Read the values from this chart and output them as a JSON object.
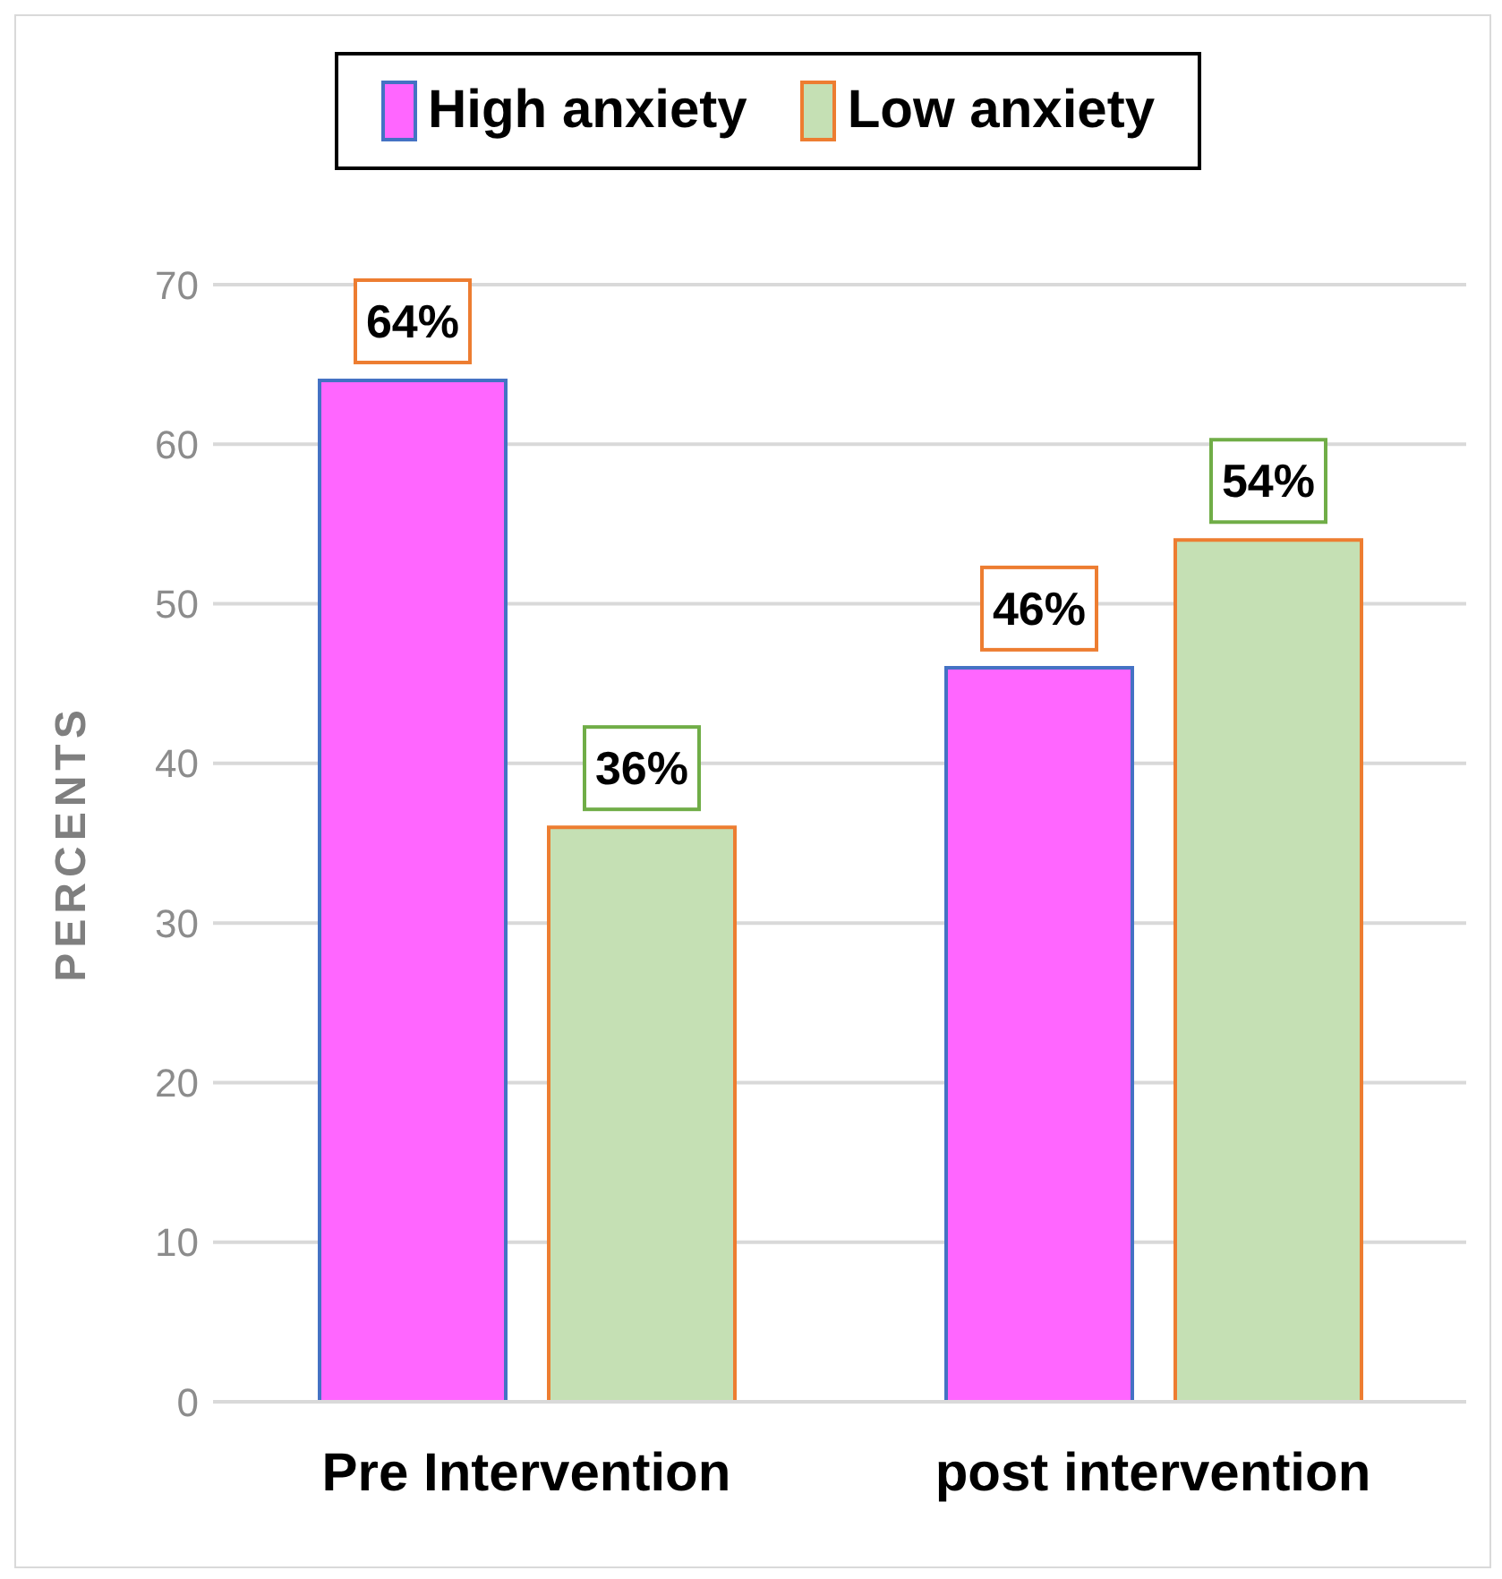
{
  "chart_data": {
    "type": "bar",
    "ylabel": "PERCENTS",
    "categories": [
      "Pre Intervention",
      "post intervention"
    ],
    "series": [
      {
        "name": "High anxiety",
        "color": "#ff66ff",
        "values": [
          64,
          46
        ],
        "value_labels": [
          "64%",
          "46%"
        ]
      },
      {
        "name": "Low anxiety",
        "color": "#c5e0b4",
        "values": [
          36,
          54
        ],
        "value_labels": [
          "36%",
          "54%"
        ]
      }
    ],
    "ylim": [
      0,
      70
    ],
    "yticks": [
      0,
      10,
      20,
      30,
      40,
      50,
      60,
      70
    ],
    "grid": "y",
    "legend": "top"
  }
}
